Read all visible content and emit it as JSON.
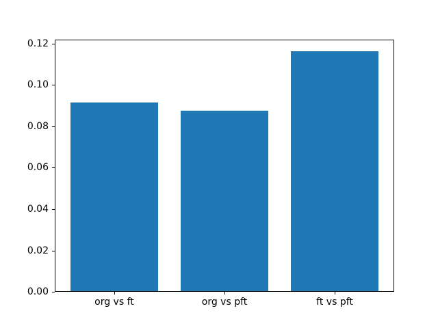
{
  "chart_data": {
    "type": "bar",
    "categories": [
      "org vs ft",
      "org vs pft",
      "ft vs pft"
    ],
    "values": [
      0.0915,
      0.0877,
      0.1164
    ],
    "title": "",
    "xlabel": "",
    "ylabel": "",
    "ylim": [
      0,
      0.122
    ],
    "yticks": [
      0,
      0.02,
      0.04,
      0.06,
      0.08,
      0.1,
      0.12
    ],
    "ytick_decimals": 2,
    "bar_width": 0.8,
    "bar_color": "#1f77b4",
    "spine_color": "#000000",
    "background_color": "#ffffff",
    "grid": false,
    "legend": false
  }
}
